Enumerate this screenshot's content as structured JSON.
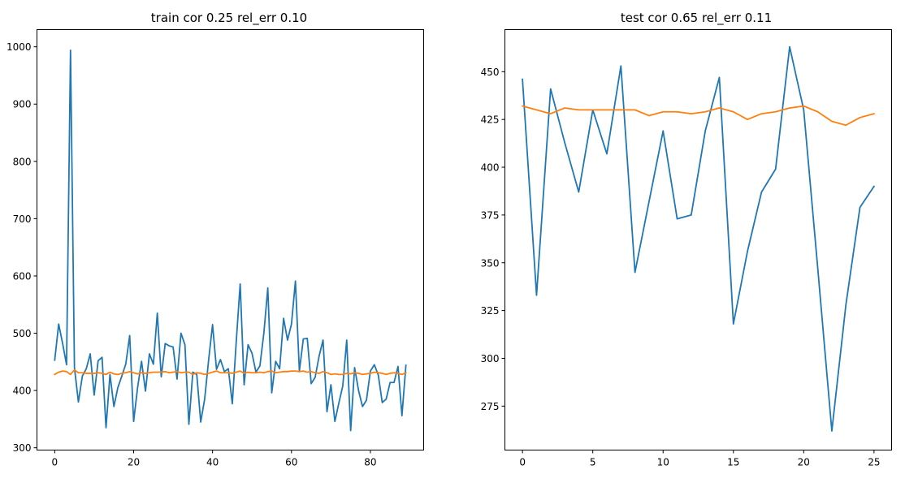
{
  "chart_data": [
    {
      "type": "line",
      "title": "train cor 0.25 rel_err 0.10",
      "xlabel": "",
      "ylabel": "",
      "xlim": [
        -4.5,
        93.5
      ],
      "ylim": [
        296,
        1030
      ],
      "xticks": [
        0,
        20,
        40,
        60,
        80
      ],
      "yticks": [
        300,
        400,
        500,
        600,
        700,
        800,
        900,
        1000
      ],
      "grid": false,
      "series": [
        {
          "color": "#1f77b4",
          "values": [
            453,
            516,
            482,
            445,
            994,
            440,
            380,
            425,
            438,
            464,
            392,
            452,
            458,
            335,
            428,
            372,
            405,
            425,
            446,
            496,
            346,
            405,
            451,
            399,
            464,
            446,
            535,
            424,
            482,
            478,
            476,
            420,
            500,
            480,
            341,
            432,
            428,
            345,
            385,
            453,
            515,
            437,
            454,
            433,
            438,
            377,
            485,
            586,
            410,
            480,
            465,
            432,
            443,
            500,
            579,
            396,
            451,
            438,
            526,
            488,
            516,
            591,
            434,
            490,
            491,
            412,
            423,
            460,
            488,
            363,
            410,
            346,
            378,
            408,
            488,
            330,
            440,
            400,
            372,
            383,
            434,
            445,
            427,
            379,
            385,
            414,
            414,
            442,
            356,
            444
          ]
        },
        {
          "color": "#ff7f0e",
          "values": [
            428,
            432,
            434,
            433,
            428,
            436,
            431,
            431,
            430,
            430,
            430,
            431,
            430,
            428,
            432,
            429,
            428,
            430,
            431,
            433,
            431,
            429,
            431,
            430,
            431,
            432,
            432,
            432,
            433,
            431,
            432,
            433,
            431,
            432,
            432,
            428,
            431,
            430,
            428,
            430,
            432,
            434,
            431,
            431,
            431,
            430,
            432,
            434,
            430,
            432,
            431,
            431,
            432,
            431,
            433,
            434,
            431,
            432,
            433,
            433,
            434,
            434,
            433,
            434,
            432,
            433,
            431,
            430,
            433,
            431,
            428,
            429,
            428,
            428,
            430,
            429,
            431,
            430,
            428,
            429,
            430,
            432,
            431,
            430,
            428,
            430,
            431,
            430,
            428,
            431
          ]
        }
      ]
    },
    {
      "type": "line",
      "title": "test cor 0.65 rel_err 0.11",
      "xlabel": "",
      "ylabel": "",
      "xlim": [
        -1.25,
        26.25
      ],
      "ylim": [
        252,
        472
      ],
      "xticks": [
        0,
        5,
        10,
        15,
        20,
        25
      ],
      "yticks": [
        275,
        300,
        325,
        350,
        375,
        400,
        425,
        450
      ],
      "grid": false,
      "series": [
        {
          "color": "#1f77b4",
          "values": [
            446,
            333,
            441,
            413,
            387,
            430,
            407,
            453,
            345,
            382,
            419,
            373,
            375,
            419,
            447,
            318,
            356,
            387,
            399,
            463,
            430,
            347,
            262,
            328,
            379,
            390
          ]
        },
        {
          "color": "#ff7f0e",
          "values": [
            432,
            430,
            428,
            431,
            430,
            430,
            430,
            430,
            430,
            427,
            429,
            429,
            428,
            429,
            431,
            429,
            425,
            428,
            429,
            431,
            432,
            429,
            424,
            422,
            426,
            428
          ]
        }
      ]
    }
  ]
}
